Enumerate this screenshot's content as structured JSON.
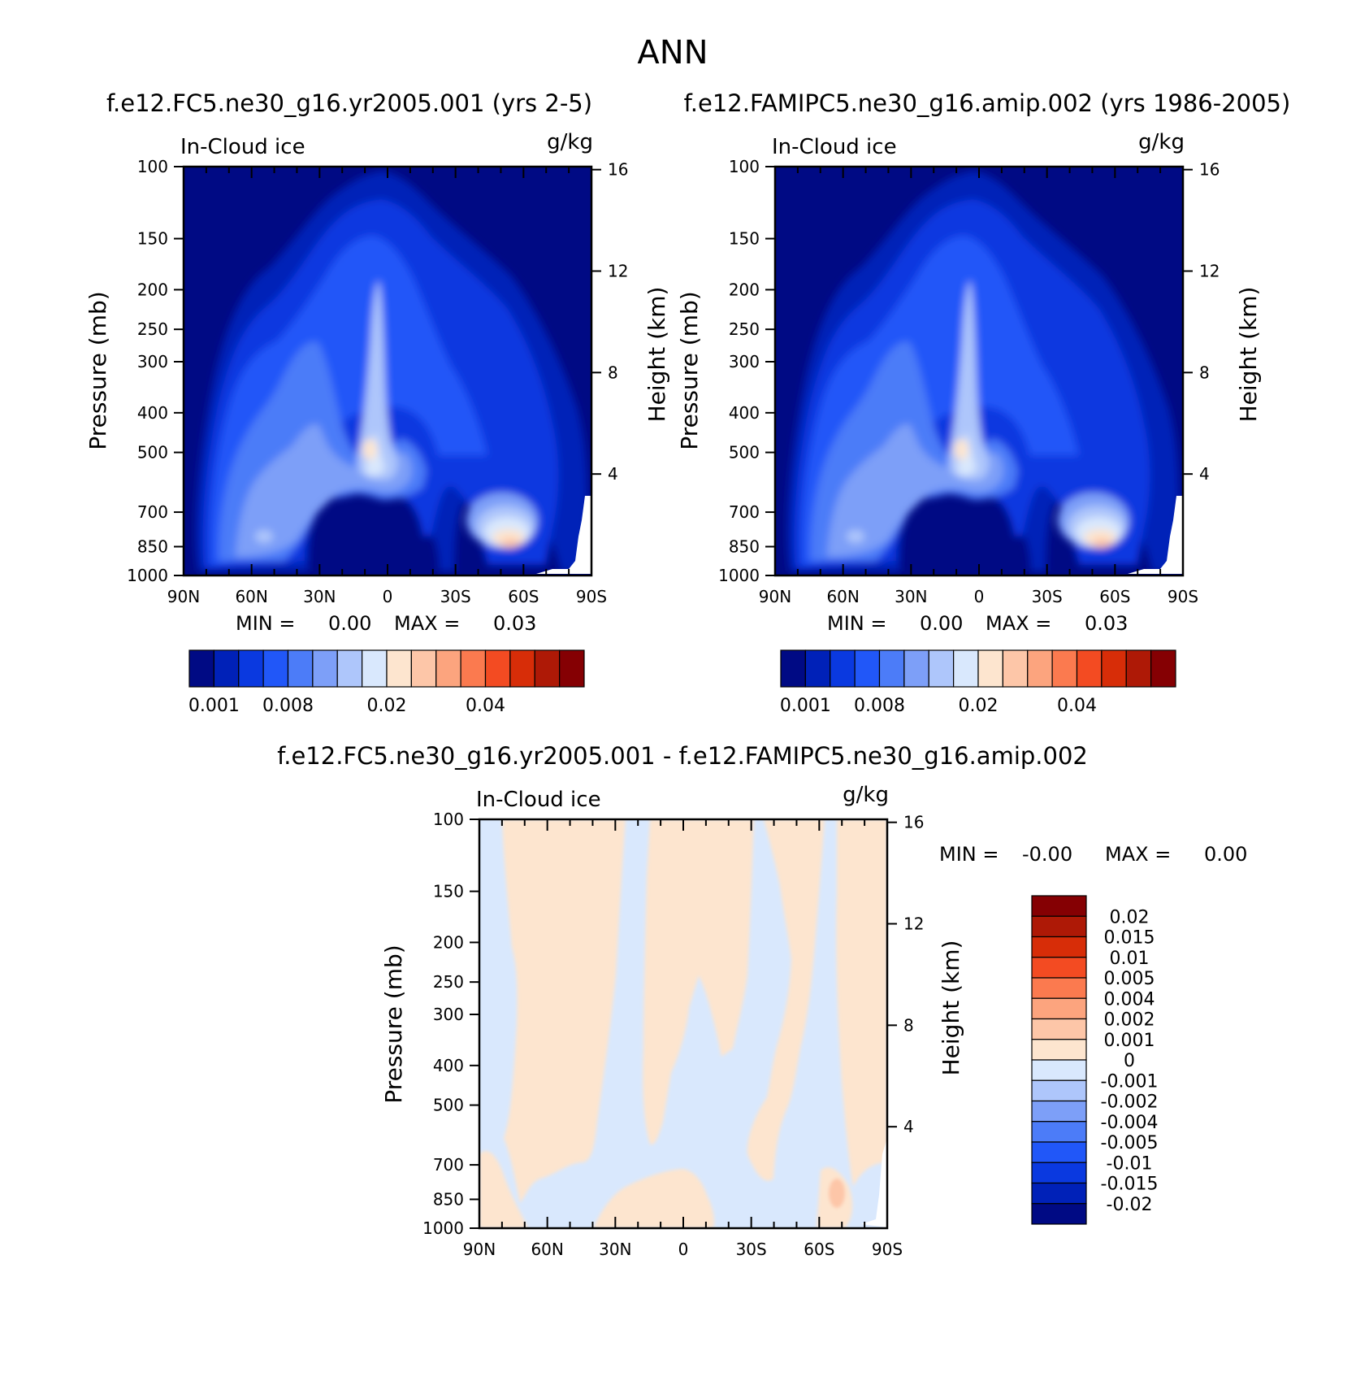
{
  "figure_title": "ANN",
  "chart_data": [
    {
      "type": "contour",
      "title": "f.e12.FC5.ne30_g16.yr2005.001 (yrs 2-5)",
      "left_label": "In-Cloud ice",
      "right_label": "g/kg",
      "xlabel": "",
      "ylabel": "Pressure (mb)",
      "y2label": "Height (km)",
      "x_ticks": [
        "90N",
        "60N",
        "30N",
        "0",
        "30S",
        "60S",
        "90S"
      ],
      "y_ticks": [
        "100",
        "150",
        "200",
        "250",
        "300",
        "400",
        "500",
        "700",
        "850",
        "1000"
      ],
      "y2_ticks": [
        "16",
        "12",
        "8",
        "4"
      ],
      "stats": {
        "min_label": "MIN =",
        "min": "0.00",
        "max_label": "MAX =",
        "max": "0.03"
      },
      "colorbar": {
        "labels": [
          "0.001",
          "0.008",
          "0.02",
          "0.04"
        ],
        "colors": [
          "#000a84",
          "#0021b8",
          "#0a39e0",
          "#2157f8",
          "#4c7cf8",
          "#7d9ff8",
          "#aec6fb",
          "#d9e8fd",
          "#fde5cf",
          "#fdc6a8",
          "#fca47e",
          "#fb7a4f",
          "#f34b22",
          "#d72d08",
          "#ae1906",
          "#850003"
        ]
      },
      "ice_maxima_g_per_kg": [
        {
          "lat": "7N",
          "p_mb": 500,
          "value": 0.02
        },
        {
          "lat": "55S",
          "p_mb": 850,
          "value": 0.03
        }
      ]
    },
    {
      "type": "contour",
      "title": "f.e12.FAMIPC5.ne30_g16.amip.002 (yrs 1986-2005)",
      "left_label": "In-Cloud ice",
      "right_label": "g/kg",
      "xlabel": "",
      "ylabel": "Pressure (mb)",
      "y2label": "Height (km)",
      "x_ticks": [
        "90N",
        "60N",
        "30N",
        "0",
        "30S",
        "60S",
        "90S"
      ],
      "y_ticks": [
        "100",
        "150",
        "200",
        "250",
        "300",
        "400",
        "500",
        "700",
        "850",
        "1000"
      ],
      "y2_ticks": [
        "16",
        "12",
        "8",
        "4"
      ],
      "stats": {
        "min_label": "MIN =",
        "min": "0.00",
        "max_label": "MAX =",
        "max": "0.03"
      },
      "colorbar": {
        "labels": [
          "0.001",
          "0.008",
          "0.02",
          "0.04"
        ],
        "colors": [
          "#000a84",
          "#0021b8",
          "#0a39e0",
          "#2157f8",
          "#4c7cf8",
          "#7d9ff8",
          "#aec6fb",
          "#d9e8fd",
          "#fde5cf",
          "#fdc6a8",
          "#fca47e",
          "#fb7a4f",
          "#f34b22",
          "#d72d08",
          "#ae1906",
          "#850003"
        ]
      },
      "ice_maxima_g_per_kg": [
        {
          "lat": "7N",
          "p_mb": 500,
          "value": 0.02
        },
        {
          "lat": "55S",
          "p_mb": 850,
          "value": 0.03
        }
      ]
    },
    {
      "type": "contour",
      "title": "f.e12.FC5.ne30_g16.yr2005.001 - f.e12.FAMIPC5.ne30_g16.amip.002",
      "left_label": "In-Cloud ice",
      "right_label": "g/kg",
      "xlabel": "",
      "ylabel": "Pressure (mb)",
      "y2label": "Height (km)",
      "x_ticks": [
        "90N",
        "60N",
        "30N",
        "0",
        "30S",
        "60S",
        "90S"
      ],
      "y_ticks": [
        "100",
        "150",
        "200",
        "250",
        "300",
        "400",
        "500",
        "700",
        "850",
        "1000"
      ],
      "y2_ticks": [
        "16",
        "12",
        "8",
        "4"
      ],
      "stats": {
        "min_label": "MIN =",
        "min": "-0.00",
        "max_label": "MAX =",
        "max": "0.00"
      },
      "colorbar": {
        "labels": [
          "0.02",
          "0.015",
          "0.01",
          "0.005",
          "0.004",
          "0.002",
          "0.001",
          "0",
          "-0.001",
          "-0.002",
          "-0.004",
          "-0.005",
          "-0.01",
          "-0.015",
          "-0.02"
        ],
        "colors": [
          "#850003",
          "#ae1906",
          "#d72d08",
          "#f34b22",
          "#fb7a4f",
          "#fca47e",
          "#fdc6a8",
          "#fde5cf",
          "#d9e8fd",
          "#aec6fb",
          "#7d9ff8",
          "#4c7cf8",
          "#2157f8",
          "#0a39e0",
          "#0021b8",
          "#000a84"
        ]
      }
    }
  ]
}
